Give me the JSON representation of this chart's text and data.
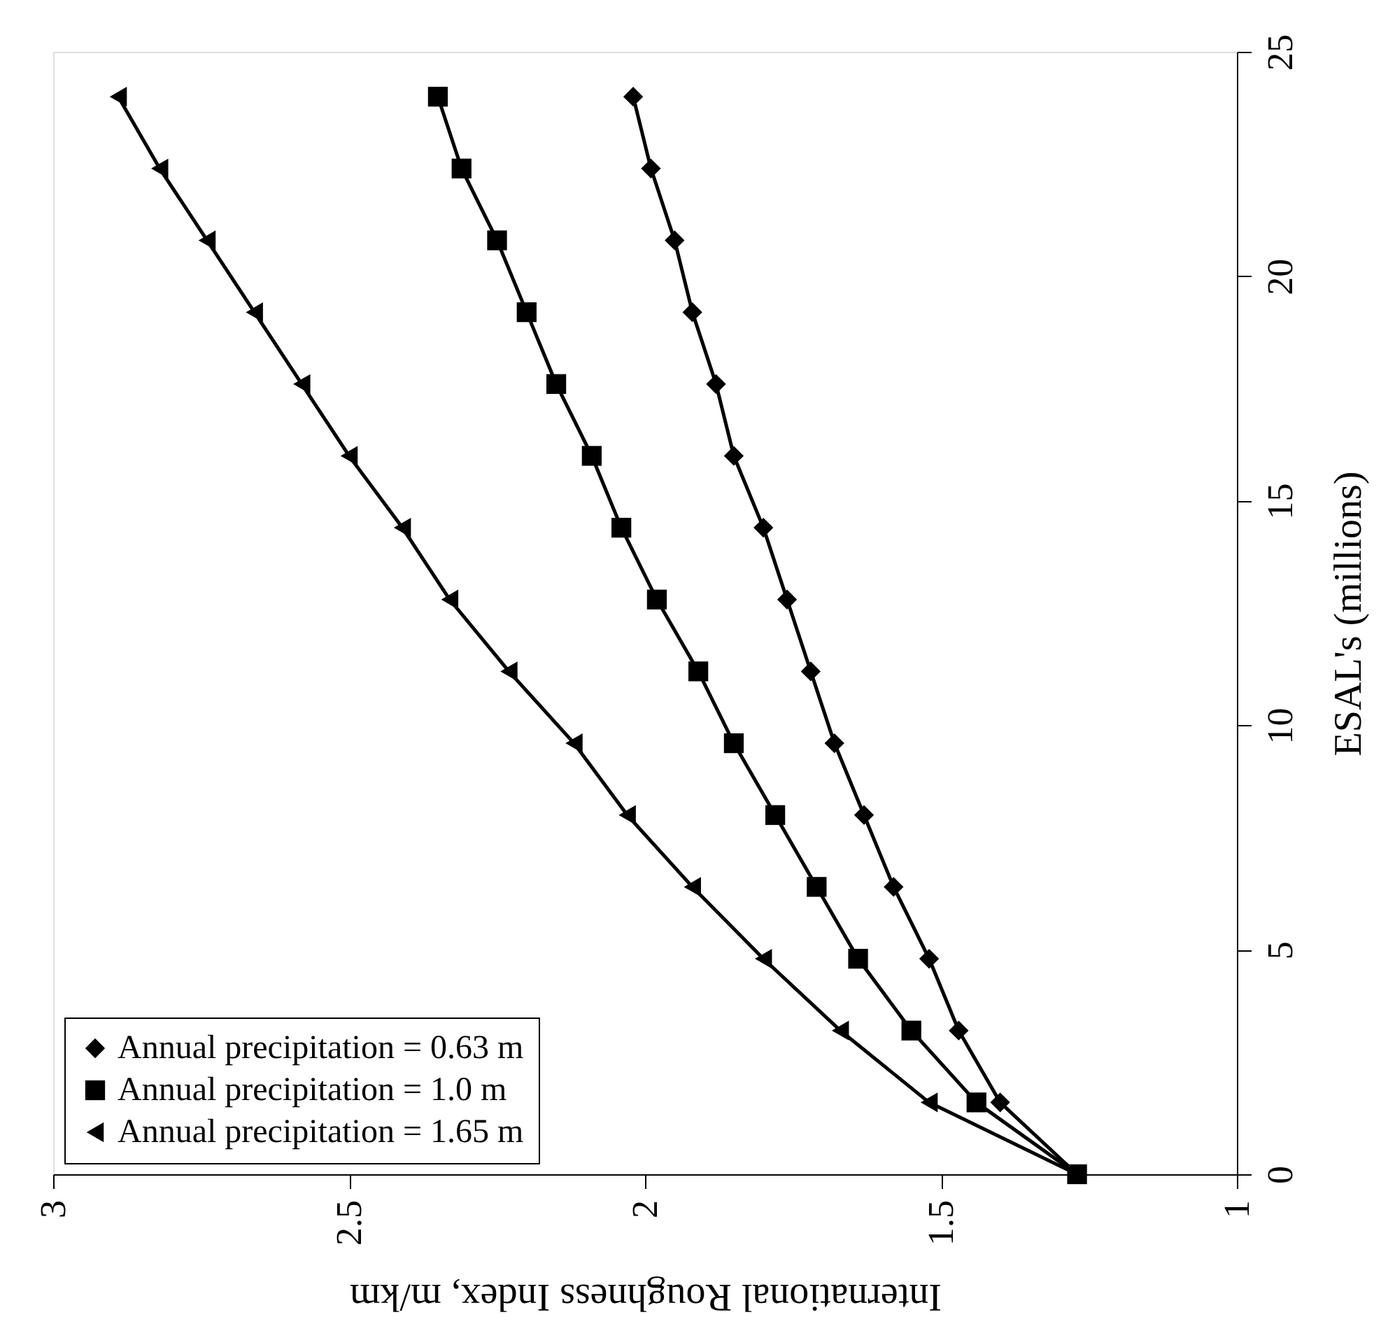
{
  "chart_data": {
    "type": "line",
    "xlabel": "International Roughness Index, m/km",
    "ylabel": "ESAL's (millions)",
    "series": [
      {
        "name": "Annual precipitation = 0.63 m",
        "color": "#000000",
        "marker": "diamond",
        "x": [
          1.27,
          1.4,
          1.47,
          1.52,
          1.58,
          1.63,
          1.68,
          1.72,
          1.76,
          1.8,
          1.85,
          1.88,
          1.92,
          1.95,
          1.99,
          2.02
        ],
        "values": [
          0,
          1.6,
          3.2,
          4.8,
          6.4,
          8,
          9.6,
          11.2,
          12.8,
          14.4,
          16,
          17.6,
          19.2,
          20.8,
          22.4,
          24
        ]
      },
      {
        "name": "Annual precipitation = 1.0 m",
        "color": "#000000",
        "marker": "square",
        "x": [
          1.27,
          1.44,
          1.55,
          1.64,
          1.71,
          1.78,
          1.85,
          1.91,
          1.98,
          2.04,
          2.09,
          2.15,
          2.2,
          2.25,
          2.31,
          2.35
        ],
        "values": [
          0,
          1.6,
          3.2,
          4.8,
          6.4,
          8,
          9.6,
          11.2,
          12.8,
          14.4,
          16,
          17.6,
          19.2,
          20.8,
          22.4,
          24
        ]
      },
      {
        "name": "Annual precipitation = 1.65 m",
        "color": "#000000",
        "marker": "triangle",
        "x": [
          1.27,
          1.52,
          1.67,
          1.8,
          1.92,
          2.03,
          2.12,
          2.23,
          2.33,
          2.41,
          2.5,
          2.58,
          2.66,
          2.74,
          2.82,
          2.89
        ],
        "values": [
          0,
          1.6,
          3.2,
          4.8,
          6.4,
          8,
          9.6,
          11.2,
          12.8,
          14.4,
          16,
          17.6,
          19.2,
          20.8,
          22.4,
          24
        ]
      }
    ],
    "xlim": [
      3,
      1
    ],
    "xticks": [
      3,
      2.5,
      2,
      1.5,
      1
    ],
    "ylim": [
      0,
      25
    ],
    "yticks": [
      0,
      5,
      10,
      15,
      20,
      25
    ],
    "grid": false,
    "legend": "bottom left",
    "line_style": "solid"
  }
}
